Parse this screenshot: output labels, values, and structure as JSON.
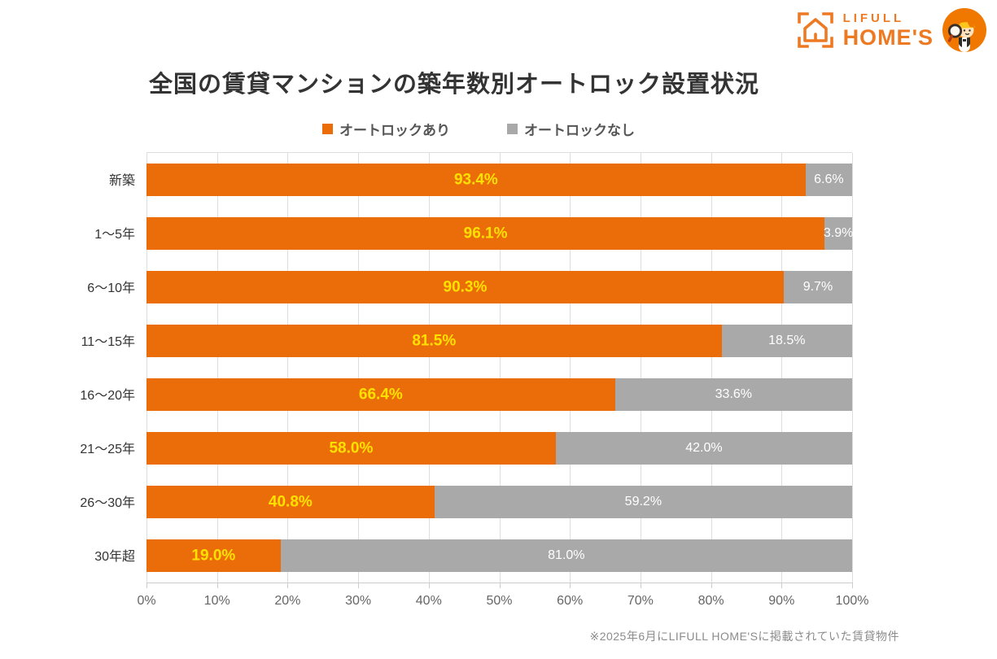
{
  "header": {
    "logo": {
      "brand_line1": "LIFULL",
      "brand_line2": "HOME'S",
      "color": "#ED7A23"
    }
  },
  "title": "全国の賃貸マンションの築年数別オートロック設置状況",
  "legend": [
    {
      "label": "オートロックあり",
      "color": "#EB6D0A"
    },
    {
      "label": "オートロックなし",
      "color": "#A9A9A9"
    }
  ],
  "chart_data": {
    "type": "bar",
    "orientation": "horizontal",
    "stacked": true,
    "title": "全国の賃貸マンションの築年数別オートロック設置状況",
    "categories": [
      "新築",
      "1〜5年",
      "6〜10年",
      "11〜15年",
      "16〜20年",
      "21〜25年",
      "26〜30年",
      "30年超"
    ],
    "series": [
      {
        "name": "オートロックあり",
        "color": "#EB6D0A",
        "label_color": "#FFE100",
        "values": [
          93.4,
          96.1,
          90.3,
          81.5,
          66.4,
          58.0,
          40.8,
          19.0
        ]
      },
      {
        "name": "オートロックなし",
        "color": "#A9A9A9",
        "label_color": "#FFFFFF",
        "values": [
          6.6,
          3.9,
          9.7,
          18.5,
          33.6,
          42.0,
          59.2,
          81.0
        ]
      }
    ],
    "value_suffix": "%",
    "x_axis": {
      "min": 0,
      "max": 100,
      "ticks": [
        "0%",
        "10%",
        "20%",
        "30%",
        "40%",
        "50%",
        "60%",
        "70%",
        "80%",
        "90%",
        "100%"
      ]
    },
    "grid": true,
    "legend_position": "top"
  },
  "footer": {
    "note": "※2025年6月にLIFULL HOME'Sに掲載されていた賃貸物件"
  }
}
